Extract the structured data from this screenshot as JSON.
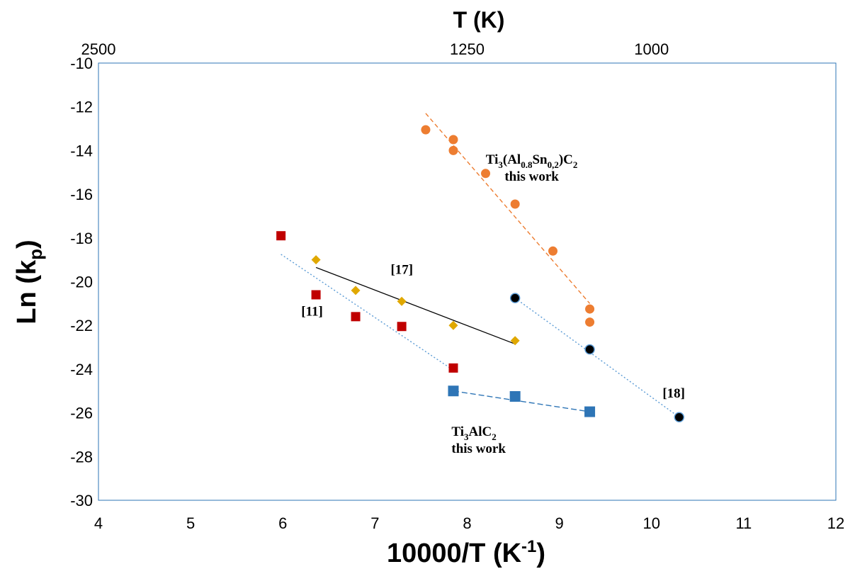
{
  "chart_data": {
    "type": "scatter",
    "xlabel": {
      "text": "10000/T (K",
      "sup": "-1",
      "tail": ")"
    },
    "ylabel": {
      "text": "Ln (k",
      "sub": "p",
      "tail": ")"
    },
    "top_xlabel": "T (K)",
    "xlim": [
      4,
      12
    ],
    "ylim": [
      -30,
      -10
    ],
    "x_ticks": [
      "4",
      "5",
      "6",
      "7",
      "8",
      "9",
      "10",
      "11",
      "12"
    ],
    "y_ticks": [
      "-10",
      "-12",
      "-14",
      "-16",
      "-18",
      "-20",
      "-22",
      "-24",
      "-26",
      "-28",
      "-30"
    ],
    "top_ticks": [
      {
        "label": "2500",
        "T": 2500
      },
      {
        "label": "1250",
        "T": 1250
      },
      {
        "label": "1000",
        "T": 1000
      }
    ],
    "grid": false,
    "colors": {
      "orange": "#ED7D31",
      "red": "#C00000",
      "gold": "#E0A800",
      "blue": "#2E75B6",
      "black": "#000000",
      "frame": "#2E75B6"
    },
    "series": [
      {
        "marker": "circle",
        "color": "#ED7D31",
        "points": [
          [
            7.55,
            -13.05
          ],
          [
            7.85,
            -13.5
          ],
          [
            7.85,
            -14.0
          ],
          [
            8.2,
            -15.05
          ],
          [
            8.52,
            -16.45
          ],
          [
            8.93,
            -18.6
          ],
          [
            9.33,
            -21.25
          ],
          [
            9.33,
            -21.85
          ]
        ],
        "fit": {
          "x": [
            7.55,
            9.33
          ],
          "y": [
            -12.3,
            -21.0
          ],
          "color": "#ED7D31",
          "dash": "6,4",
          "width": 1.4
        }
      },
      {
        "marker": "square",
        "color": "#C00000",
        "points": [
          [
            5.98,
            -17.9
          ],
          [
            6.36,
            -20.6
          ],
          [
            6.79,
            -21.6
          ],
          [
            7.29,
            -22.05
          ],
          [
            7.85,
            -23.95
          ]
        ],
        "fit": {
          "x": [
            5.98,
            7.85
          ],
          "y": [
            -18.75,
            -24.05
          ],
          "color": "#5B9BD5",
          "dash": "2,3",
          "width": 1.4
        }
      },
      {
        "marker": "diamond",
        "color": "#E0A800",
        "points": [
          [
            6.36,
            -19.0
          ],
          [
            6.79,
            -20.4
          ],
          [
            7.29,
            -20.9
          ],
          [
            7.85,
            -22.0
          ],
          [
            8.52,
            -22.7
          ]
        ],
        "fit": {
          "x": [
            6.36,
            8.52
          ],
          "y": [
            -19.35,
            -22.85
          ],
          "color": "#000000",
          "dash": "",
          "width": 1.3
        }
      },
      {
        "marker": "square",
        "color": "#2E75B6",
        "points": [
          [
            7.85,
            -25.0
          ],
          [
            8.52,
            -25.25
          ],
          [
            9.33,
            -25.95
          ]
        ],
        "fit": {
          "x": [
            7.85,
            9.33
          ],
          "y": [
            -25.0,
            -25.95
          ],
          "color": "#2E75B6",
          "dash": "8,4",
          "width": 1.4
        }
      },
      {
        "marker": "circle-black",
        "color": "#000000",
        "points": [
          [
            8.52,
            -20.75
          ],
          [
            9.33,
            -23.1
          ],
          [
            10.3,
            -26.2
          ]
        ],
        "fit": {
          "x": [
            8.52,
            10.3
          ],
          "y": [
            -20.75,
            -26.2
          ],
          "color": "#5B9BD5",
          "dash": "2,3",
          "width": 1.4
        }
      }
    ],
    "annotations": {
      "ti3alsn": {
        "base": "Ti",
        "s1": "3",
        "mid": "(Al",
        "s2": "0.8",
        "mid2": "Sn",
        "s3": "0,2",
        "mid3": ")C",
        "s4": "2",
        "line2": "this work",
        "x": 8.7,
        "y": -14.6
      },
      "ti3alc2": {
        "base": "Ti",
        "s1": "3",
        "mid": "AlC",
        "s2": "2",
        "line2": "this work",
        "x": 7.83,
        "y": -27.05
      },
      "ref11": {
        "text": "[11]",
        "x": 6.2,
        "y": -21.55
      },
      "ref17": {
        "text": "[17]",
        "x": 7.17,
        "y": -19.65
      },
      "ref18": {
        "text": "[18]",
        "x": 10.12,
        "y": -25.3
      }
    }
  }
}
